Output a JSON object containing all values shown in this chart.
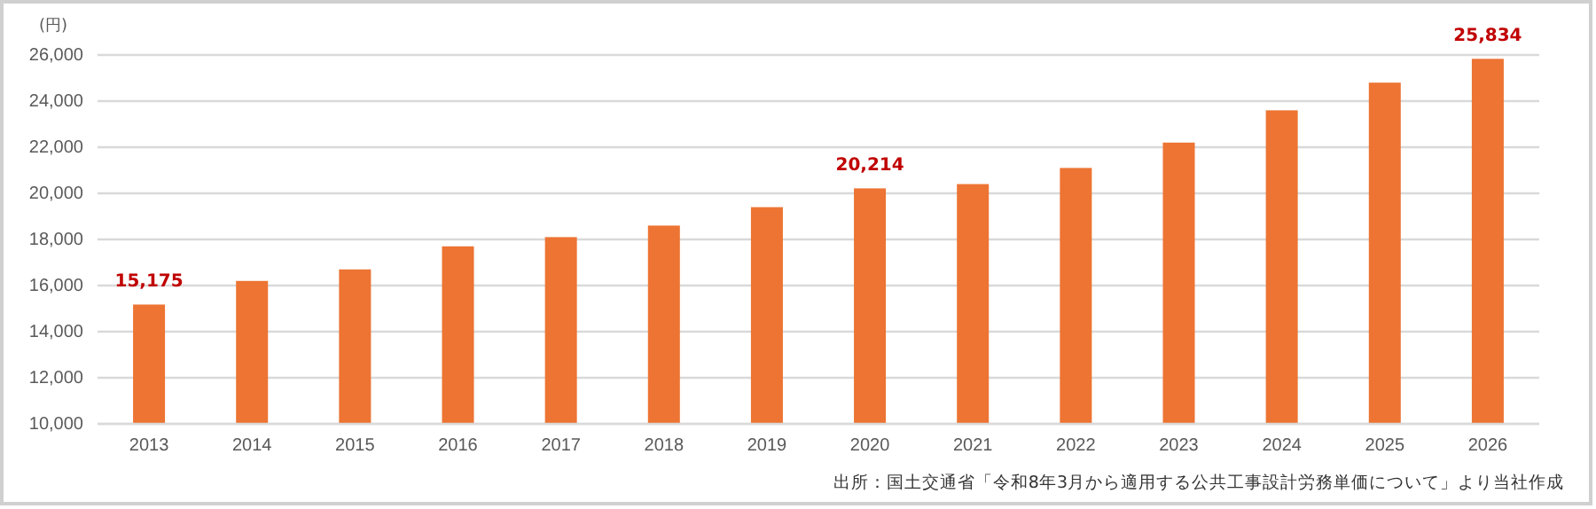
{
  "chart_data": {
    "type": "bar",
    "ylabel": "(円)",
    "categories": [
      "2013",
      "2014",
      "2015",
      "2016",
      "2017",
      "2018",
      "2019",
      "2020",
      "2021",
      "2022",
      "2023",
      "2024",
      "2025",
      "2026"
    ],
    "values": [
      15175,
      16200,
      16700,
      17700,
      18100,
      18600,
      19400,
      20214,
      20400,
      21100,
      22200,
      23600,
      24800,
      25834
    ],
    "value_labels": [
      "15,175",
      null,
      null,
      null,
      null,
      null,
      null,
      "20,214",
      null,
      null,
      null,
      null,
      null,
      "25,834"
    ],
    "color": "#ed7433",
    "ylim": [
      10000,
      26000
    ],
    "yticks": [
      {
        "value": 10000,
        "label": "10,000"
      },
      {
        "value": 12000,
        "label": "12,000"
      },
      {
        "value": 14000,
        "label": "14,000"
      },
      {
        "value": 16000,
        "label": "16,000"
      },
      {
        "value": 18000,
        "label": "18,000"
      },
      {
        "value": 20000,
        "label": "20,000"
      },
      {
        "value": 22000,
        "label": "22,000"
      },
      {
        "value": 24000,
        "label": "24,000"
      },
      {
        "value": 26000,
        "label": "26,000"
      }
    ],
    "grid": "y",
    "annotations": [
      "出所：国土交通省「令和8年3月から適用する公共工事設計労務単価について」より当社作成"
    ]
  }
}
